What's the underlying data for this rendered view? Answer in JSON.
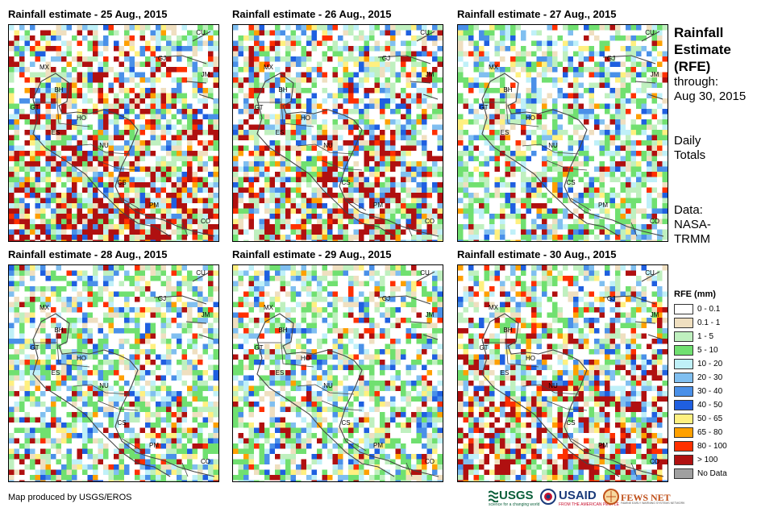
{
  "panels": [
    {
      "title": "Rainfall estimate - 25 Aug., 2015",
      "intensity": 3
    },
    {
      "title": "Rainfall estimate - 26 Aug., 2015",
      "intensity": 2
    },
    {
      "title": "Rainfall estimate - 27 Aug., 2015",
      "intensity": 1
    },
    {
      "title": "Rainfall estimate - 28 Aug., 2015",
      "intensity": 1
    },
    {
      "title": "Rainfall estimate - 29 Aug., 2015",
      "intensity": 1
    },
    {
      "title": "Rainfall estimate - 30 Aug., 2015",
      "intensity": 2
    }
  ],
  "map_labels": [
    "CU",
    "GJ",
    "JM",
    "MX",
    "BH",
    "GT",
    "HO",
    "ES",
    "NU",
    "CS",
    "PM",
    "CO"
  ],
  "sidebar": {
    "title_lines": [
      "Rainfall",
      "Estimate",
      "(RFE)"
    ],
    "through_label": "through:",
    "through_date": "Aug 30, 2015",
    "daily_lines": [
      "Daily",
      "Totals"
    ],
    "data_lines": [
      "Data:",
      "NASA-",
      "TRMM"
    ]
  },
  "legend": {
    "title": "RFE (mm)",
    "items": [
      {
        "label": "0 - 0.1",
        "color": "#ffffff"
      },
      {
        "label": "0.1 - 1",
        "color": "#efdfc0"
      },
      {
        "label": "1 - 5",
        "color": "#bff0bf"
      },
      {
        "label": "5 - 10",
        "color": "#70e070"
      },
      {
        "label": "10 - 20",
        "color": "#bff0f8"
      },
      {
        "label": "20 - 30",
        "color": "#80bff0"
      },
      {
        "label": "30 - 40",
        "color": "#4a90e8"
      },
      {
        "label": "40 - 50",
        "color": "#1f5fe0"
      },
      {
        "label": "50 - 65",
        "color": "#fff080"
      },
      {
        "label": "65 - 80",
        "color": "#ffa000"
      },
      {
        "label": "80 - 100",
        "color": "#ff3000"
      },
      {
        "label": "> 100",
        "color": "#b01010"
      },
      {
        "label": "No Data",
        "color": "#a0a0a0"
      }
    ]
  },
  "footer": {
    "credit": "Map produced by USGS/EROS",
    "logos": [
      {
        "name": "usgs-logo",
        "text": "USGS",
        "sub": "science for a changing world"
      },
      {
        "name": "usaid-logo",
        "text": "USAID",
        "sub": "FROM THE AMERICAN PEOPLE"
      },
      {
        "name": "fewsnet-logo",
        "text": "FEWS NET",
        "sub": "FAMINE EARLY WARNING SYSTEMS NETWORK"
      }
    ]
  }
}
